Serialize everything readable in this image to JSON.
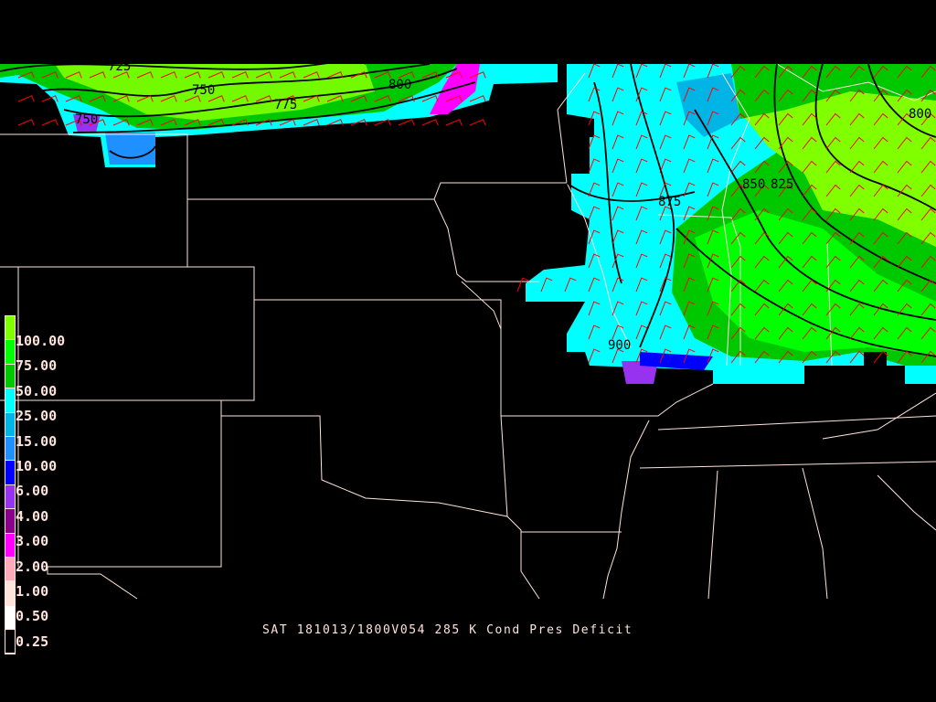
{
  "title": "SAT 181013/1800V054 285 K Cond Pres Deficit",
  "colorbar": {
    "labels": [
      "100.00",
      "75.00",
      "50.00",
      "25.00",
      "15.00",
      "10.00",
      "6.00",
      "4.00",
      "3.00",
      "2.00",
      "1.00",
      "0.50",
      "0.25"
    ],
    "colors": [
      "#80ff00",
      "#00ff00",
      "#00c800",
      "#00ffff",
      "#00b4e6",
      "#1e90ff",
      "#0000ff",
      "#9632f0",
      "#8b008b",
      "#ff00ff",
      "#ffaabb",
      "#ffe4dc",
      "#ffffff",
      "#000000"
    ]
  },
  "contour_labels": [
    "725",
    "750",
    "775",
    "800",
    "750",
    "875",
    "850",
    "825",
    "900",
    "800"
  ],
  "colors": {
    "background": "#000000",
    "boundaries": "#ffe4dc",
    "wind_barbs": "#ff0000",
    "contours": "#000000"
  }
}
